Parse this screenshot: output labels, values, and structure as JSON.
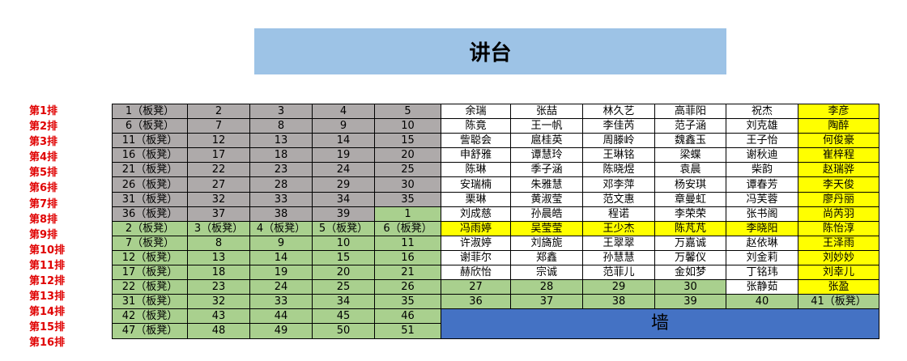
{
  "podium": "讲台",
  "wall": "墙",
  "colors": {
    "g": "#aeaaaa",
    "G": "#a9d08e",
    "w": "#ffffff",
    "y": "#ffff00",
    "podium": "#9dc3e6",
    "wall": "#4472c4",
    "row_label": "#e00000"
  },
  "rows": [
    {
      "label": "第1排",
      "fills": "gggggwwwwwy",
      "cells": [
        "1（板凳）",
        "2",
        "3",
        "4",
        "5",
        "余瑞",
        "张喆",
        "林久艺",
        "高菲阳",
        "祝杰",
        "李彦"
      ]
    },
    {
      "label": "第2排",
      "fills": "gggggwwwwwy",
      "cells": [
        "6（板凳）",
        "7",
        "8",
        "9",
        "10",
        "陈竟",
        "王一帆",
        "李佳芮",
        "范子涵",
        "刘克雄",
        "陶醉"
      ]
    },
    {
      "label": "第3排",
      "fills": "gggggwwwwwy",
      "cells": [
        "11（板凳）",
        "12",
        "13",
        "14",
        "15",
        "訾聪会",
        "扈桂英",
        "周滕岭",
        "魏鑫玉",
        "王子怡",
        "何俊豪"
      ]
    },
    {
      "label": "第4排",
      "fills": "gggggwwwwwy",
      "cells": [
        "16（板凳）",
        "17",
        "18",
        "19",
        "20",
        "申舒雅",
        "谭慧玲",
        "王琳铭",
        "梁蝶",
        "谢秋迪",
        "崔梓程"
      ]
    },
    {
      "label": "第5排",
      "fills": "gggggwwwwwy",
      "cells": [
        "21（板凳）",
        "22",
        "23",
        "24",
        "25",
        "陈琳",
        "季子涵",
        "陈晓煜",
        "袁晨",
        "柴韵",
        "赵瑞骅"
      ]
    },
    {
      "label": "第6排",
      "fills": "gggggwwwwwy",
      "cells": [
        "26（板凳）",
        "27",
        "28",
        "29",
        "30",
        "安瑞楠",
        "朱雅慧",
        "邓李萍",
        "杨安琪",
        "谭春芳",
        "李天俊"
      ]
    },
    {
      "label": "第7排",
      "fills": "gggggwwwwwy",
      "cells": [
        "31（板凳）",
        "32",
        "33",
        "34",
        "35",
        "栗琳",
        "黄淑莹",
        "范文惠",
        "章曼虹",
        "冯芙蓉",
        "廖丹丽"
      ]
    },
    {
      "label": "第8排",
      "fills": "ggggGwwwwwy",
      "cells": [
        "36（板凳）",
        "37",
        "38",
        "39",
        "1",
        "刘成慈",
        "孙晨皓",
        "程诺",
        "李荣荣",
        "张书阁",
        "尚芮羽"
      ]
    },
    {
      "label": "第9排",
      "fills": "GGGGGyyyyyy",
      "cells": [
        "2（板凳）",
        "3（板凳）",
        "4（板凳）",
        "5（板凳）",
        "6（板凳）",
        "冯雨婷",
        "吴莹莹",
        "王少杰",
        "陈芃芃",
        "李晓阳",
        "陈怡淳"
      ]
    },
    {
      "label": "第10排",
      "fills": "GGGGGwwwwwy",
      "cells": [
        "7（板凳）",
        "8",
        "9",
        "10",
        "11",
        "许淑婷",
        "刘旖旎",
        "王翠翠",
        "万嘉诚",
        "赵依琳",
        "王泽雨"
      ]
    },
    {
      "label": "第11排",
      "fills": "GGGGGwwwwwy",
      "cells": [
        "12（板凳）",
        "13",
        "14",
        "15",
        "16",
        "谢菲尔",
        "郑鑫",
        "孙慧慧",
        "万馨仪",
        "刘金莉",
        "刘妙妙"
      ]
    },
    {
      "label": "第12排",
      "fills": "GGGGGwwwwwy",
      "cells": [
        "17（板凳）",
        "18",
        "19",
        "20",
        "21",
        "赫欣怡",
        "宗诚",
        "范菲儿",
        "金如梦",
        "丁铭玮",
        "刘幸儿"
      ]
    },
    {
      "label": "第13排",
      "fills": "GGGGGGGGGwy",
      "cells": [
        "22（板凳）",
        "23",
        "24",
        "25",
        "26",
        "27",
        "28",
        "29",
        "30",
        "张静茹",
        "张盈"
      ]
    },
    {
      "label": "第14排",
      "fills": "GGGGGGGGGGG",
      "cells": [
        "31（板凳）",
        "32",
        "33",
        "34",
        "35",
        "36",
        "37",
        "38",
        "39",
        "40",
        "41（板凳）"
      ]
    },
    {
      "label": "第15排",
      "fills": "GGGGG",
      "cells": [
        "42（板凳）",
        "43",
        "44",
        "45",
        "46"
      ]
    },
    {
      "label": "第16排",
      "fills": "GGGGG",
      "cells": [
        "47（板凳）",
        "48",
        "49",
        "50",
        "51"
      ]
    }
  ]
}
